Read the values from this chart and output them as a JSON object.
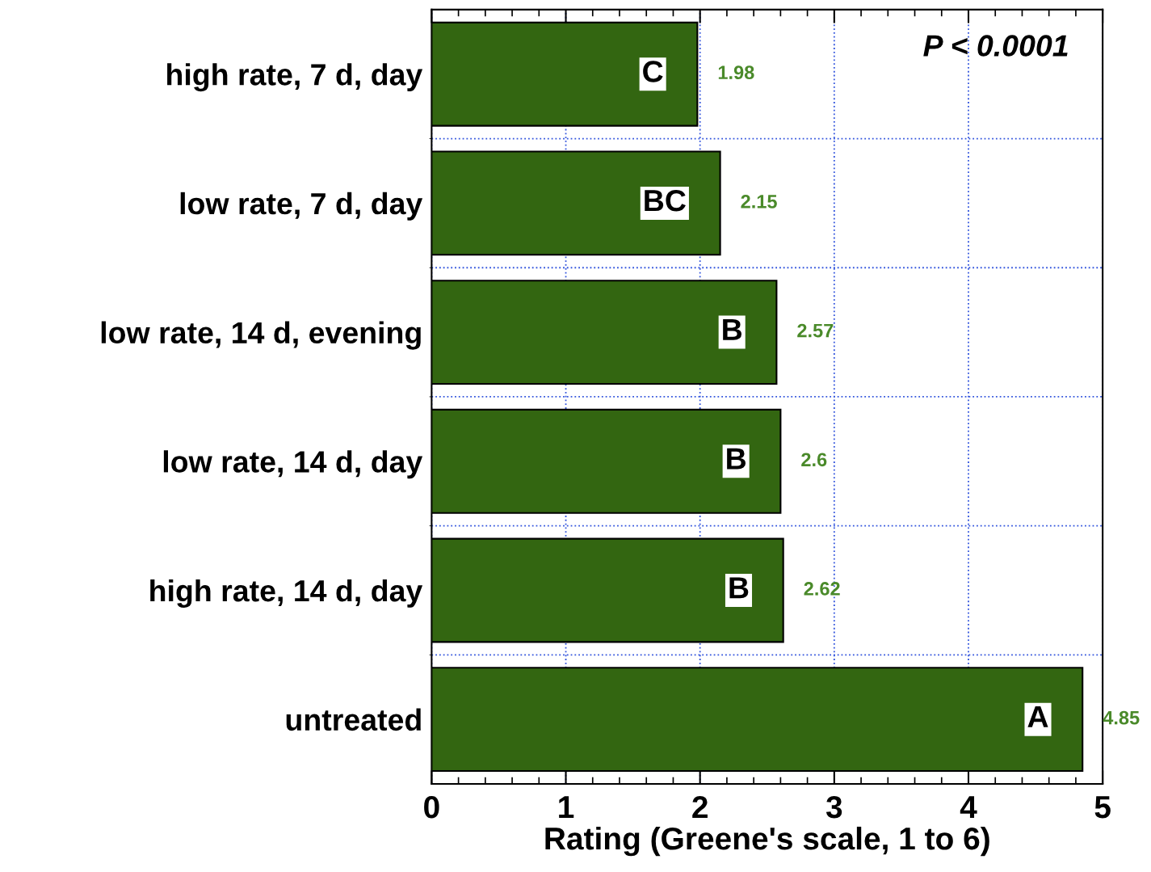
{
  "chart_data": {
    "type": "bar",
    "orientation": "horizontal",
    "xlabel": "Rating (Greene's scale, 1 to 6)",
    "categories": [
      "high rate, 7 d, day",
      "low rate, 7 d, day",
      "low rate, 14 d, evening",
      "low rate, 14 d, day",
      "high rate, 14 d, day",
      "untreated"
    ],
    "values": [
      1.98,
      2.15,
      2.57,
      2.6,
      2.62,
      4.85
    ],
    "color": "#336611",
    "data_labels": true,
    "xlim": [
      0,
      5
    ],
    "xticks": [
      0,
      1,
      2,
      3,
      4,
      5
    ],
    "grid": true,
    "annotations": [
      "P < 0.0001",
      {
        "text": "C",
        "x": 1.98,
        "y": "high rate, 7 d, day"
      },
      {
        "text": "BC",
        "x": 2.15,
        "y": "low rate, 7 d, day"
      },
      {
        "text": "B",
        "x": 2.57,
        "y": "low rate, 14 d, evening"
      },
      {
        "text": "B",
        "x": 2.6,
        "y": "low rate, 14 d, day"
      },
      {
        "text": "B",
        "x": 2.62,
        "y": "high rate, 14 d, day"
      },
      {
        "text": "A",
        "x": 4.85,
        "y": "untreated"
      }
    ]
  }
}
